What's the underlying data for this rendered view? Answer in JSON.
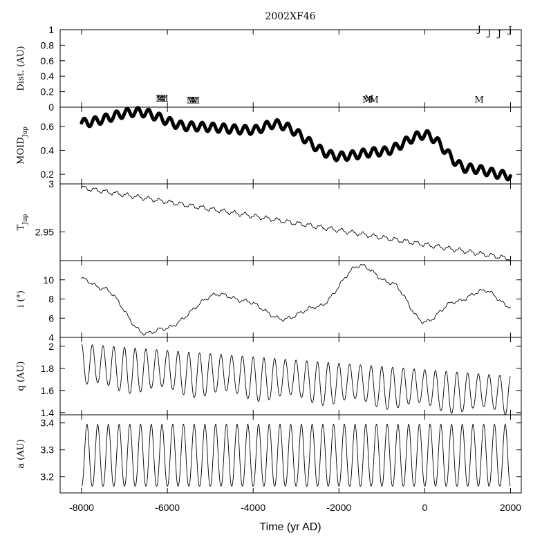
{
  "title": "2002XF46",
  "xlabel": "Time (yr AD)",
  "chart_data": [
    {
      "type": "scatter",
      "panel": "distance",
      "ylabel": "Dist. (AU)",
      "ylim": [
        0,
        1
      ],
      "yticks": [
        0,
        0.2,
        0.4,
        0.6,
        0.8,
        1
      ],
      "ytick_labels": [
        "0",
        "0.2",
        "0.4",
        "0.6",
        "0.8",
        "1"
      ],
      "encounters": [
        {
          "planet": "M",
          "x": -6170,
          "y": 0.07
        },
        {
          "planet": "M",
          "x": -6130,
          "y": 0.07
        },
        {
          "planet": "M",
          "x": -6080,
          "y": 0.07
        },
        {
          "planet": "M",
          "x": -5450,
          "y": 0.05
        },
        {
          "planet": "M",
          "x": -5400,
          "y": 0.05
        },
        {
          "planet": "M",
          "x": -5350,
          "y": 0.05
        },
        {
          "planet": "M",
          "x": -1350,
          "y": 0.06
        },
        {
          "planet": "M",
          "x": -1300,
          "y": 0.07
        },
        {
          "planet": "M",
          "x": -1180,
          "y": 0.06
        },
        {
          "planet": "M",
          "x": 1270,
          "y": 0.06
        },
        {
          "planet": "J",
          "x": 1270,
          "y": 0.97
        },
        {
          "planet": "J",
          "x": 1500,
          "y": 0.92
        },
        {
          "planet": "J",
          "x": 1740,
          "y": 0.91
        },
        {
          "planet": "J",
          "x": 1990,
          "y": 0.96
        }
      ]
    },
    {
      "type": "scatter",
      "panel": "moid",
      "ylabel": "MOID",
      "ylabel_sub": "Jup",
      "ylim": [
        0.12,
        0.76
      ],
      "yticks": [
        0.2,
        0.4,
        0.6
      ],
      "ytick_labels": [
        "0.2",
        "0.4",
        "0.6"
      ],
      "model": {
        "anchors_x": [
          -8000,
          -6700,
          -5500,
          -4000,
          -3500,
          -2000,
          -1000,
          0,
          1000,
          2000
        ],
        "anchors_y": [
          0.63,
          0.72,
          0.6,
          0.57,
          0.62,
          0.35,
          0.39,
          0.53,
          0.25,
          0.19
        ],
        "osc_amplitude": 0.035,
        "osc_period": 250,
        "step": 12
      }
    },
    {
      "type": "line",
      "panel": "tjup",
      "ylabel": "T",
      "ylabel_sub": "Jup",
      "ylim": [
        2.92,
        3.0
      ],
      "yticks": [
        2.95,
        3.0
      ],
      "ytick_labels": [
        "2.95",
        "3"
      ],
      "model": {
        "start": 2.996,
        "end": 2.922,
        "wiggle": 0.002,
        "osc_period": 250,
        "step": 10
      }
    },
    {
      "type": "line",
      "panel": "inclination",
      "ylabel": "i (°)",
      "ylim": [
        4,
        12
      ],
      "yticks": [
        4,
        6,
        8,
        10
      ],
      "ytick_labels": [
        "4",
        "6",
        "8",
        "10"
      ],
      "model": {
        "anchors_x": [
          -8000,
          -7500,
          -6500,
          -6100,
          -4800,
          -4200,
          -3300,
          -2500,
          -1500,
          -800,
          0,
          700,
          1400,
          2000
        ],
        "anchors_y": [
          10.1,
          9.1,
          4.4,
          4.9,
          8.5,
          7.8,
          5.9,
          7.2,
          11.5,
          9.7,
          5.6,
          7.7,
          8.9,
          7.2
        ],
        "wiggle": 0.15,
        "osc_period": 250,
        "step": 10
      }
    },
    {
      "type": "line",
      "panel": "perihelion",
      "ylabel": "q (AU)",
      "ylim": [
        1.38,
        2.08
      ],
      "yticks": [
        1.4,
        1.6,
        1.8,
        2.0
      ],
      "ytick_labels": [
        "1.4",
        "1.6",
        "1.8",
        "2"
      ],
      "model": {
        "high_start": 2.02,
        "high_end": 1.73,
        "low_start": 1.64,
        "low_end": 1.4,
        "osc_period": 250,
        "step": 6
      }
    },
    {
      "type": "line",
      "panel": "semimajor",
      "ylabel": "a (AU)",
      "ylim": [
        3.14,
        3.43
      ],
      "yticks": [
        3.2,
        3.3,
        3.4
      ],
      "ytick_labels": [
        "3.2",
        "3.3",
        "3.4"
      ],
      "model": {
        "high": 3.395,
        "low": 3.165,
        "osc_period": 250,
        "step": 6
      }
    }
  ],
  "xaxis": {
    "xlim": [
      -8500,
      2250
    ],
    "ticks": [
      -8000,
      -6000,
      -4000,
      -2000,
      0,
      2000
    ],
    "tick_labels": [
      "-8000",
      "-6000",
      "-4000",
      "-2000",
      "0",
      "2000"
    ]
  }
}
